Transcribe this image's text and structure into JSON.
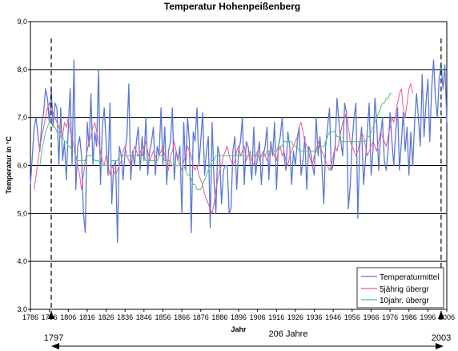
{
  "chart_data": {
    "type": "line",
    "title": "Temperatur  Hohenpeißenberg",
    "xlabel": "Jahr",
    "ylabel": "Temperatur in °C",
    "xlim": [
      1786,
      2006
    ],
    "ylim": [
      3.0,
      9.0
    ],
    "x_ticks": [
      1786,
      1796,
      1806,
      1816,
      1826,
      1836,
      1846,
      1856,
      1866,
      1876,
      1886,
      1896,
      1906,
      1916,
      1926,
      1936,
      1946,
      1956,
      1966,
      1976,
      1986,
      1996,
      2006
    ],
    "y_ticks": [
      "3,0",
      "4,0",
      "5,0",
      "6,0",
      "7,0",
      "8,0",
      "9,0"
    ],
    "grid": "horizontal",
    "legend_position": "bottom-right",
    "colors": {
      "Temperaturmittel": "#5a78d4",
      "5jährig übergr": "#e65a96",
      "10jahr. übergr": "#55c27a",
      "grid": "#000000"
    },
    "series": [
      {
        "name": "Temperaturmittel",
        "x_start": 1786,
        "values": [
          5.6,
          6.2,
          6.8,
          7.0,
          6.6,
          6.3,
          6.9,
          7.1,
          7.6,
          7.4,
          6.9,
          7.6,
          6.8,
          7.3,
          7.2,
          6.0,
          7.2,
          6.1,
          6.5,
          5.7,
          6.8,
          7.6,
          6.0,
          8.2,
          5.5,
          6.4,
          6.6,
          6.2,
          5.0,
          4.6,
          6.9,
          6.4,
          7.5,
          6.0,
          6.7,
          6.4,
          8.0,
          5.6,
          6.8,
          7.2,
          6.5,
          5.8,
          7.3,
          5.2,
          6.0,
          6.1,
          4.4,
          6.4,
          6.2,
          5.7,
          6.3,
          6.6,
          7.7,
          5.7,
          6.3,
          6.0,
          6.5,
          6.8,
          5.9,
          6.6,
          6.1,
          7.0,
          5.8,
          6.3,
          6.5,
          6.8,
          5.8,
          6.4,
          6.2,
          7.2,
          6.0,
          6.8,
          5.6,
          6.3,
          6.5,
          7.2,
          5.7,
          6.3,
          6.1,
          6.4,
          5.0,
          6.9,
          5.9,
          7.0,
          6.5,
          4.6,
          6.7,
          6.5,
          7.2,
          6.0,
          6.5,
          7.1,
          5.8,
          6.3,
          6.6,
          4.7,
          6.9,
          5.7,
          5.0,
          6.4,
          6.2,
          5.2,
          5.9,
          6.0,
          6.0,
          5.0,
          5.1,
          6.3,
          6.6,
          5.5,
          6.3,
          6.5,
          7.0,
          5.6,
          6.5,
          6.4,
          6.1,
          5.7,
          6.8,
          5.8,
          6.2,
          6.5,
          5.6,
          6.2,
          6.4,
          6.8,
          5.7,
          6.5,
          6.2,
          6.9,
          5.5,
          6.4,
          6.6,
          7.0,
          6.2,
          5.9,
          6.7,
          6.4,
          5.6,
          6.3,
          6.0,
          6.5,
          6.8,
          5.8,
          6.1,
          6.6,
          5.5,
          6.4,
          6.3,
          6.0,
          5.8,
          7.0,
          6.2,
          6.6,
          6.0,
          5.2,
          6.4,
          6.8,
          7.2,
          5.9,
          6.0,
          6.4,
          7.4,
          6.9,
          6.5,
          6.2,
          7.3,
          7.1,
          5.1,
          5.6,
          6.5,
          7.0,
          7.3,
          4.9,
          6.4,
          6.8,
          5.6,
          6.1,
          6.7,
          7.3,
          5.8,
          6.3,
          7.4,
          6.9,
          5.9,
          6.6,
          7.0,
          6.1,
          5.9,
          6.3,
          7.1,
          6.5,
          6.0,
          6.7,
          7.2,
          5.9,
          6.5,
          7.1,
          6.3,
          6.8,
          5.8,
          6.7,
          6.0,
          6.9,
          7.5,
          7.0,
          6.4,
          7.9,
          6.6,
          7.3,
          7.8,
          6.5,
          7.6,
          8.2,
          7.4,
          7.0,
          7.8,
          8.1,
          7.6,
          8.1,
          6.9
        ]
      },
      {
        "name": "5jährig übergr",
        "x_start": 1788,
        "values": [
          5.5,
          5.8,
          6.1,
          6.4,
          6.6,
          6.8,
          7.0,
          7.2,
          7.3,
          7.2,
          7.1,
          7.0,
          6.9,
          6.8,
          6.7,
          6.6,
          6.9,
          6.8,
          7.0,
          6.7,
          6.6,
          6.4,
          6.2,
          6.0,
          5.8,
          5.5,
          5.8,
          6.1,
          6.3,
          6.5,
          6.6,
          6.8,
          6.9,
          6.7,
          6.5,
          6.3,
          6.1,
          6.0,
          6.2,
          6.0,
          5.8,
          6.0,
          5.9,
          5.8,
          5.9,
          6.0,
          6.1,
          6.3,
          6.4,
          6.2,
          6.1,
          6.0,
          6.2,
          6.4,
          6.3,
          6.2,
          6.3,
          6.2,
          6.4,
          6.5,
          6.3,
          6.1,
          6.2,
          6.3,
          6.2,
          6.1,
          6.2,
          6.3,
          6.4,
          6.2,
          6.0,
          5.9,
          6.2,
          6.3,
          6.5,
          6.3,
          6.1,
          6.0,
          5.9,
          6.1,
          6.2,
          6.4,
          6.3,
          6.2,
          6.0,
          5.9,
          6.0,
          5.8,
          5.7,
          5.6,
          5.4,
          5.3,
          5.2,
          5.1,
          5.0,
          5.2,
          5.5,
          5.7,
          5.9,
          6.0,
          6.2,
          6.3,
          6.4,
          6.2,
          6.1,
          6.0,
          6.1,
          6.3,
          6.4,
          6.2,
          6.3,
          6.4,
          6.1,
          6.2,
          6.3,
          6.1,
          6.0,
          6.2,
          6.3,
          6.1,
          6.2,
          6.3,
          6.2,
          6.1,
          6.2,
          6.4,
          6.3,
          6.2,
          6.1,
          6.3,
          6.4,
          6.2,
          6.3,
          6.1,
          6.0,
          6.2,
          6.3,
          6.4,
          6.5,
          6.6,
          6.8,
          6.9,
          6.7,
          6.5,
          6.4,
          6.3,
          6.1,
          6.0,
          6.2,
          6.3,
          6.5,
          6.4,
          6.3,
          6.2,
          6.1,
          6.0,
          5.9,
          6.0,
          6.2,
          6.4,
          6.3,
          6.5,
          6.7,
          6.9,
          7.0,
          7.1,
          6.8,
          6.5,
          6.4,
          6.3,
          6.2,
          6.3,
          6.5,
          6.7,
          6.6,
          6.4,
          6.2,
          6.3,
          6.4,
          6.5,
          6.4,
          6.3,
          6.5,
          6.7,
          6.6,
          6.5,
          6.4,
          6.6,
          6.8,
          7.0,
          6.9,
          7.1,
          7.3,
          7.5,
          7.6,
          7.2,
          7.0,
          7.3,
          7.6,
          7.7,
          7.5
        ]
      },
      {
        "name": "10jahr. übergr",
        "x_start": 1791,
        "values": [
          6.0,
          6.3,
          6.5,
          6.7,
          6.8,
          6.9,
          6.9,
          6.8,
          6.8,
          6.7,
          6.7,
          6.6,
          6.6,
          6.5,
          6.5,
          6.4,
          6.4,
          6.3,
          6.3,
          6.2,
          6.1,
          6.1,
          6.1,
          6.1,
          6.1,
          6.2,
          6.2,
          6.2,
          6.2,
          6.1,
          6.1,
          6.1,
          6.0,
          6.0,
          6.0,
          6.0,
          6.0,
          6.0,
          6.1,
          6.1,
          6.1,
          6.1,
          6.2,
          6.2,
          6.2,
          6.2,
          6.2,
          6.2,
          6.2,
          6.2,
          6.2,
          6.2,
          6.2,
          6.2,
          6.2,
          6.2,
          6.1,
          6.1,
          6.1,
          6.1,
          6.1,
          6.1,
          6.1,
          6.2,
          6.2,
          6.2,
          6.1,
          6.1,
          6.1,
          6.1,
          6.0,
          6.0,
          6.0,
          6.0,
          6.0,
          6.0,
          6.0,
          5.9,
          5.8,
          5.8,
          5.7,
          5.6,
          5.6,
          5.5,
          5.5,
          5.5,
          5.6,
          5.7,
          5.8,
          5.9,
          6.0,
          6.1,
          6.1,
          6.2,
          6.2,
          6.2,
          6.2,
          6.2,
          6.2,
          6.2,
          6.2,
          6.2,
          6.2,
          6.2,
          6.2,
          6.2,
          6.2,
          6.2,
          6.2,
          6.2,
          6.2,
          6.2,
          6.2,
          6.2,
          6.2,
          6.2,
          6.2,
          6.2,
          6.2,
          6.2,
          6.3,
          6.3,
          6.3,
          6.3,
          6.3,
          6.3,
          6.4,
          6.4,
          6.4,
          6.5,
          6.5,
          6.5,
          6.5,
          6.5,
          6.4,
          6.4,
          6.4,
          6.3,
          6.3,
          6.3,
          6.3,
          6.3,
          6.3,
          6.3,
          6.3,
          6.3,
          6.3,
          6.3,
          6.4,
          6.4,
          6.4,
          6.5,
          6.6,
          6.7,
          6.7,
          6.7,
          6.7,
          6.6,
          6.6,
          6.5,
          6.5,
          6.5,
          6.5,
          6.5,
          6.5,
          6.5,
          6.5,
          6.5,
          6.5,
          6.5,
          6.5,
          6.5,
          6.5,
          6.6,
          6.6,
          6.7,
          6.8,
          6.9,
          7.0,
          7.1,
          7.2,
          7.3,
          7.3,
          7.4,
          7.4,
          7.5,
          7.5
        ]
      }
    ],
    "annotations": {
      "start_year": "1797",
      "end_year": "2003",
      "span": "206 Jahre",
      "marker_years": [
        1797,
        2003
      ]
    }
  }
}
